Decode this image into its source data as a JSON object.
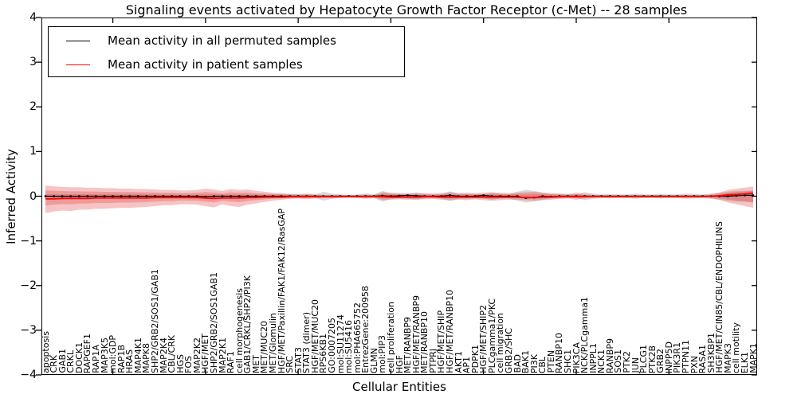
{
  "figure": {
    "title": "Signaling events activated by Hepatocyte Growth Factor Receptor (c-Met) -- 28 samples"
  },
  "legend": {
    "items": [
      {
        "label": "Mean activity in all permuted samples",
        "color": "#000000"
      },
      {
        "label": "Mean activity in patient samples",
        "color": "#ff0000"
      }
    ]
  },
  "chart_data": {
    "type": "line",
    "title": "Signaling events activated by Hepatocyte Growth Factor Receptor (c-Met) -- 28 samples",
    "xlabel": "Cellular Entities",
    "ylabel": "Inferred Activity",
    "ylim": [
      -4,
      4
    ],
    "ytick_labels": [
      "4",
      "3",
      "2",
      "1",
      "0",
      "−1",
      "−2",
      "−3",
      "−4"
    ],
    "ytick_values": [
      4,
      3,
      2,
      1,
      0,
      -1,
      -2,
      -3,
      -4
    ],
    "xtick_indices": [
      8,
      19,
      30,
      41,
      52,
      63,
      74
    ],
    "grid": false,
    "legend_position": "upper left",
    "inner_band_scale": 0.55,
    "categories": [
      "apoptosis",
      "CRK",
      "GAB1",
      "CRKL",
      "DOCK1",
      "RAPGEF1",
      "RAP1A",
      "MAP3K5",
      "mol:GDP",
      "RAP1B",
      "HRAS",
      "MAP4K1",
      "MAPK8",
      "SHP2/GRB2/SOS1/GAB1",
      "MAP2K4",
      "CBL/CRK",
      "HGS",
      "FOS",
      "MAP2K2",
      "HGF/MET",
      "SHP2/GRB2/SOS1GAB1",
      "MAP2K1",
      "RAF1",
      "cell morphogenesis",
      "GAB1/CRKL/SHP2/PI3K",
      "MET",
      "MET/MUC20",
      "MET/Glomulin",
      "HGF/MET/Paxillin/FAK1/FAK12/RasGAP",
      "SRC",
      "STAT3",
      "STAT3 (dimer)",
      "HGF/MET/MUC20",
      "RPS6KB1",
      "GO:0007205",
      "mol:SU11274",
      "mol:SU5416",
      "mol:PHA665752",
      "EntrezGene:200958",
      "GLMN",
      "mol:PIP3",
      "cell proliferation",
      "HGF",
      "MET/RANBP9",
      "HGF/MET/RANBP9",
      "MET/RANBP10",
      "PTPRJ",
      "HGF/MET/SHIP",
      "HGF/MET/RANBP10",
      "AKT1",
      "AP1",
      "PDPK1",
      "HGF/MET/SHIP2",
      "PLCgamma1/PKC",
      "cell migration",
      "GRB2/SHC",
      "BAD",
      "BAK1",
      "PI3K",
      "CBL",
      "PTEN",
      "RANBP10",
      "SHC1",
      "PIK3CA",
      "NCK/PLCgamma1",
      "INPPL1",
      "NCK1",
      "RANBP9",
      "SOS1",
      "PTK2",
      "JUN",
      "PLCG1",
      "PTK2B",
      "GRB2",
      "INPP5D",
      "PIK3R1",
      "PTPN11",
      "PXN",
      "RASA1",
      "SH3KBP1",
      "HGF/MET/CIN85/CBL/ENDOPHILINS",
      "MAPK3",
      "cell motility",
      "ELK1",
      "MAPK1"
    ],
    "series": [
      {
        "name": "Mean activity in all permuted samples",
        "color": "#000000",
        "marker": true,
        "values": [
          0,
          0,
          0,
          0,
          0,
          0,
          0,
          0,
          0,
          0,
          0,
          0,
          0,
          0,
          0,
          0,
          0,
          0,
          0,
          -0.01,
          0,
          0,
          0,
          0,
          0,
          0,
          0,
          0,
          0,
          0,
          0,
          0,
          0,
          0,
          0,
          0,
          0,
          0,
          0,
          0,
          0.01,
          0,
          0.01,
          0.02,
          0.01,
          0,
          0,
          0,
          0.02,
          0,
          0,
          0,
          0.02,
          0,
          0,
          0,
          0,
          -0.04,
          -0.03,
          0,
          -0.01,
          0,
          0,
          0,
          0,
          0,
          0,
          0,
          0,
          0,
          0,
          0,
          0,
          0,
          0,
          0,
          0,
          0,
          0,
          0,
          0,
          0,
          0.01,
          0.02,
          0.02
        ]
      },
      {
        "name": "Mean activity in patient samples",
        "color": "#ff0000",
        "marker": false,
        "values": [
          -0.06,
          -0.06,
          -0.05,
          -0.05,
          -0.05,
          -0.05,
          -0.04,
          -0.04,
          -0.04,
          -0.04,
          -0.04,
          -0.04,
          -0.04,
          -0.03,
          -0.03,
          -0.03,
          -0.03,
          -0.03,
          -0.03,
          -0.04,
          -0.05,
          -0.04,
          -0.04,
          -0.04,
          -0.03,
          -0.03,
          -0.02,
          -0.02,
          -0.02,
          -0.01,
          -0.01,
          -0.01,
          -0.01,
          -0.01,
          -0.01,
          -0.01,
          -0.01,
          -0.01,
          -0.01,
          -0.01,
          -0.01,
          -0.02,
          -0.02,
          -0.02,
          -0.02,
          -0.01,
          -0.01,
          -0.02,
          -0.02,
          -0.02,
          -0.02,
          -0.02,
          -0.02,
          -0.02,
          -0.02,
          -0.02,
          -0.02,
          -0.03,
          -0.03,
          -0.02,
          -0.02,
          -0.01,
          -0.01,
          -0.01,
          -0.01,
          -0.01,
          -0.01,
          -0.01,
          -0.01,
          -0.01,
          -0.01,
          -0.01,
          -0.01,
          -0.01,
          -0.01,
          -0.01,
          -0.01,
          -0.01,
          -0.01,
          0.0,
          0.01,
          0.03,
          0.04,
          0.05,
          0.07
        ]
      }
    ],
    "bands": [
      {
        "name": "permuted-std-band",
        "color": "#888888",
        "opacity": 0.32,
        "upper": [
          0.05,
          0.05,
          0.05,
          0.05,
          0.05,
          0.05,
          0.05,
          0.05,
          0.05,
          0.05,
          0.05,
          0.05,
          0.05,
          0.05,
          0.04,
          0.04,
          0.04,
          0.04,
          0.04,
          0.04,
          0.04,
          0.04,
          0.04,
          0.04,
          0.04,
          0.04,
          0.04,
          0.04,
          0.05,
          0.05,
          0.05,
          0.04,
          0.04,
          0.1,
          0.06,
          0.04,
          0.03,
          0.04,
          0.06,
          0.04,
          0.12,
          0.06,
          0.05,
          0.05,
          0.09,
          0.05,
          0.04,
          0.05,
          0.11,
          0.06,
          0.05,
          0.05,
          0.05,
          0.08,
          0.05,
          0.05,
          0.1,
          0.14,
          0.12,
          0.08,
          0.05,
          0.05,
          0.04,
          0.04,
          0.09,
          0.06,
          0.04,
          0.05,
          0.04,
          0.04,
          0.06,
          0.04,
          0.04,
          0.05,
          0.04,
          0.04,
          0.06,
          0.05,
          0.04,
          0.06,
          0.08,
          0.1,
          0.12,
          0.12,
          0.13
        ],
        "lower": [
          -0.05,
          -0.05,
          -0.05,
          -0.05,
          -0.05,
          -0.05,
          -0.05,
          -0.05,
          -0.05,
          -0.05,
          -0.05,
          -0.05,
          -0.05,
          -0.05,
          -0.04,
          -0.04,
          -0.04,
          -0.04,
          -0.04,
          -0.04,
          -0.04,
          -0.04,
          -0.04,
          -0.04,
          -0.04,
          -0.04,
          -0.04,
          -0.04,
          -0.05,
          -0.05,
          -0.05,
          -0.04,
          -0.04,
          -0.1,
          -0.06,
          -0.04,
          -0.03,
          -0.04,
          -0.06,
          -0.04,
          -0.12,
          -0.06,
          -0.05,
          -0.05,
          -0.09,
          -0.05,
          -0.04,
          -0.05,
          -0.11,
          -0.06,
          -0.05,
          -0.05,
          -0.05,
          -0.08,
          -0.05,
          -0.05,
          -0.1,
          -0.14,
          -0.12,
          -0.08,
          -0.05,
          -0.05,
          -0.04,
          -0.04,
          -0.09,
          -0.06,
          -0.04,
          -0.05,
          -0.04,
          -0.04,
          -0.06,
          -0.04,
          -0.04,
          -0.05,
          -0.04,
          -0.04,
          -0.06,
          -0.05,
          -0.04,
          -0.06,
          -0.08,
          -0.1,
          -0.12,
          -0.12,
          -0.13
        ]
      },
      {
        "name": "patient-std-band",
        "color": "#e03c3c",
        "opacity": 0.3,
        "upper": [
          0.24,
          0.22,
          0.21,
          0.2,
          0.2,
          0.19,
          0.19,
          0.18,
          0.18,
          0.17,
          0.17,
          0.16,
          0.16,
          0.15,
          0.14,
          0.14,
          0.13,
          0.13,
          0.14,
          0.17,
          0.15,
          0.12,
          0.16,
          0.14,
          0.15,
          0.12,
          0.1,
          0.08,
          0.07,
          0.05,
          0.04,
          0.06,
          0.04,
          0.03,
          0.03,
          0.03,
          0.03,
          0.03,
          0.04,
          0.03,
          0.09,
          0.08,
          0.07,
          0.07,
          0.06,
          0.07,
          0.06,
          0.07,
          0.09,
          0.07,
          0.08,
          0.07,
          0.08,
          0.09,
          0.08,
          0.07,
          0.08,
          0.09,
          0.1,
          0.08,
          0.07,
          0.06,
          0.05,
          0.08,
          0.05,
          0.03,
          0.03,
          0.03,
          0.03,
          0.03,
          0.03,
          0.03,
          0.03,
          0.03,
          0.03,
          0.03,
          0.03,
          0.03,
          0.03,
          0.04,
          0.08,
          0.14,
          0.17,
          0.19,
          0.22
        ],
        "lower": [
          -0.38,
          -0.34,
          -0.32,
          -0.33,
          -0.3,
          -0.3,
          -0.28,
          -0.28,
          -0.27,
          -0.26,
          -0.26,
          -0.25,
          -0.24,
          -0.22,
          -0.2,
          -0.2,
          -0.18,
          -0.18,
          -0.19,
          -0.22,
          -0.25,
          -0.18,
          -0.22,
          -0.24,
          -0.19,
          -0.16,
          -0.13,
          -0.1,
          -0.08,
          -0.06,
          -0.05,
          -0.07,
          -0.05,
          -0.04,
          -0.04,
          -0.03,
          -0.03,
          -0.03,
          -0.04,
          -0.03,
          -0.09,
          -0.08,
          -0.07,
          -0.08,
          -0.07,
          -0.07,
          -0.06,
          -0.08,
          -0.09,
          -0.08,
          -0.09,
          -0.07,
          -0.09,
          -0.1,
          -0.09,
          -0.08,
          -0.08,
          -0.09,
          -0.1,
          -0.09,
          -0.08,
          -0.06,
          -0.05,
          -0.08,
          -0.05,
          -0.03,
          -0.03,
          -0.03,
          -0.03,
          -0.03,
          -0.03,
          -0.03,
          -0.03,
          -0.03,
          -0.03,
          -0.03,
          -0.03,
          -0.03,
          -0.03,
          -0.04,
          -0.08,
          -0.14,
          -0.18,
          -0.22,
          -0.26
        ]
      }
    ]
  }
}
